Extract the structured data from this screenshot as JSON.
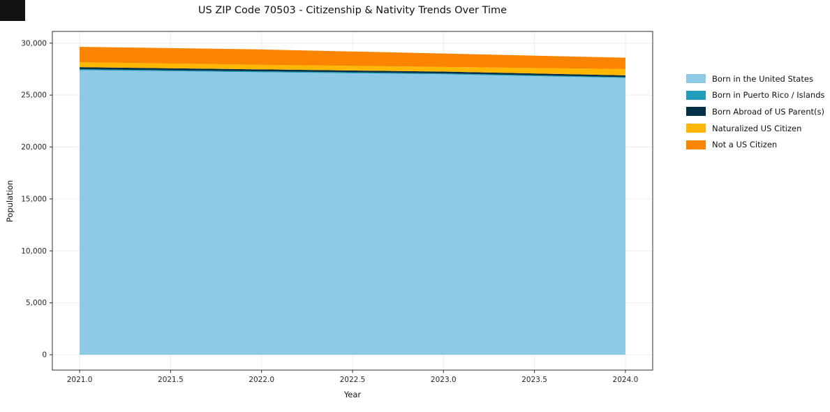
{
  "figure": {
    "background": "#ffffff",
    "spine_color": "#2e2e2e",
    "grid_color": "#ededed",
    "text_color": "#262626"
  },
  "chart_data": {
    "type": "area",
    "stacked": true,
    "title": "US ZIP Code 70503 - Citizenship & Nativity Trends Over Time",
    "xlabel": "Year",
    "ylabel": "Population",
    "x": [
      2021,
      2022,
      2023,
      2024
    ],
    "series": [
      {
        "name": "Born in the United States",
        "color": "#8ecae6",
        "values": [
          27400,
          27200,
          27000,
          26650
        ]
      },
      {
        "name": "Born in Puerto Rico / Islands",
        "color": "#219ebc",
        "values": [
          90,
          90,
          85,
          80
        ]
      },
      {
        "name": "Born Abroad of US Parent(s)",
        "color": "#023047",
        "values": [
          200,
          185,
          175,
          170
        ]
      },
      {
        "name": "Naturalized US Citizen",
        "color": "#ffb703",
        "values": [
          480,
          440,
          450,
          600
        ]
      },
      {
        "name": "Not a US Citizen",
        "color": "#fb8500",
        "values": [
          1480,
          1480,
          1290,
          1100
        ]
      }
    ],
    "xlim": [
      2020.85,
      2024.15
    ],
    "ylim": [
      -1480,
      31130
    ],
    "xticks": {
      "values": [
        2021.0,
        2021.5,
        2022.0,
        2022.5,
        2023.0,
        2023.5,
        2024.0
      ],
      "labels": [
        "2021.0",
        "2021.5",
        "2022.0",
        "2022.5",
        "2023.0",
        "2023.5",
        "2024.0"
      ]
    },
    "yticks": {
      "values": [
        0,
        5000,
        10000,
        15000,
        20000,
        25000,
        30000
      ],
      "labels": [
        "0",
        "5,000",
        "10,000",
        "15,000",
        "20,000",
        "25,000",
        "30,000"
      ]
    },
    "grid": true,
    "legend_position": "right"
  }
}
